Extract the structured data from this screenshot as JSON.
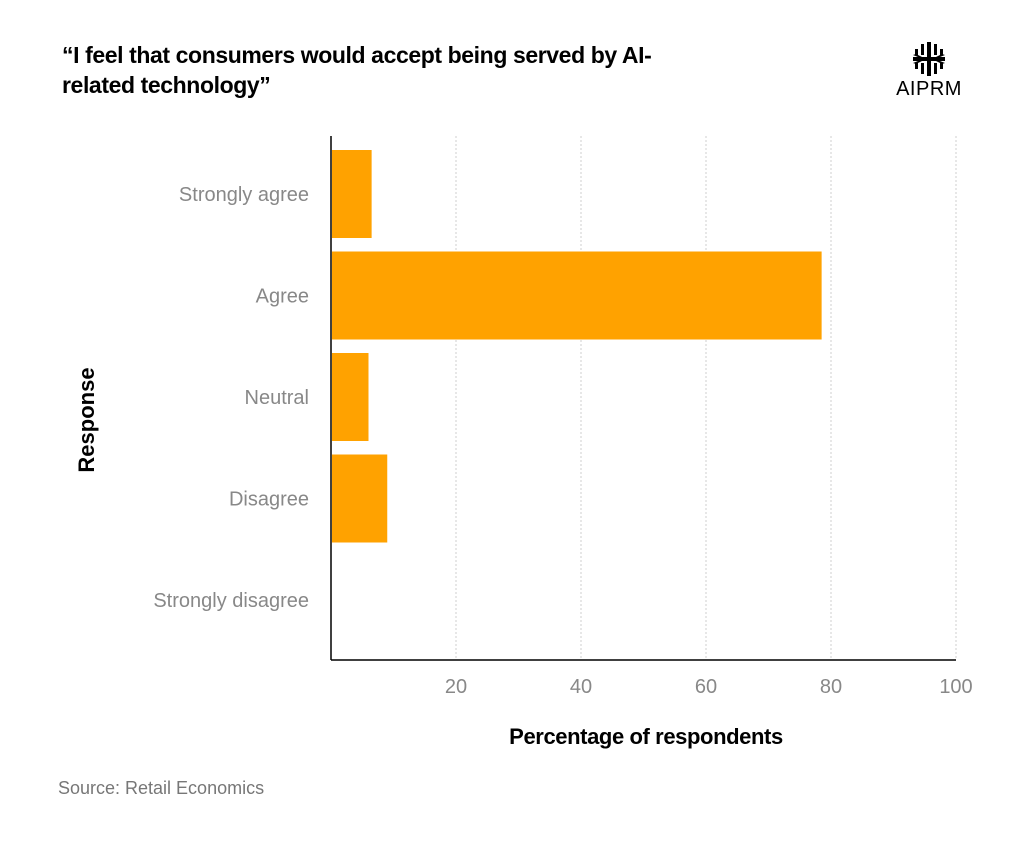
{
  "title": "“I feel that consumers would accept being served by AI-related technology”",
  "logo": {
    "text": "AIPRM"
  },
  "source": "Source:  Retail Economics",
  "chart_data": {
    "type": "bar",
    "orientation": "horizontal",
    "categories": [
      "Strongly agree",
      "Agree",
      "Neutral",
      "Disagree",
      "Strongly disagree"
    ],
    "values": [
      6.5,
      78.5,
      6,
      9,
      0
    ],
    "xlabel": "Percentage of respondents",
    "ylabel": "Response",
    "xlim": [
      0,
      100
    ],
    "xticks": [
      20,
      40,
      60,
      80,
      100
    ],
    "grid": true,
    "bar_color": "#FFA200"
  }
}
